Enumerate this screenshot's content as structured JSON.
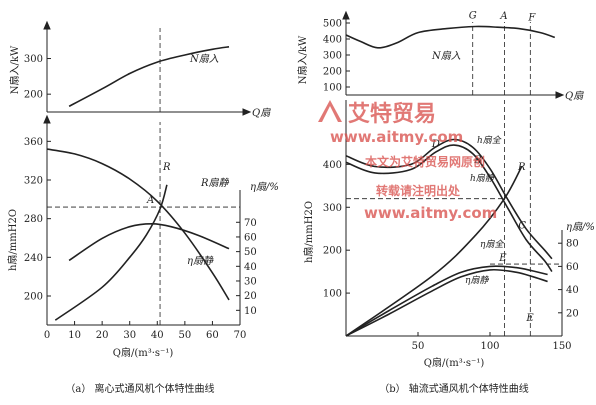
{
  "watermark": {
    "brand": "艾特贸易",
    "url": "www.aitmy.com",
    "line1": "本文为艾特贸易网原创",
    "line2": "转载请注明出处",
    "color": "#d9534f"
  },
  "chart_data": [
    {
      "type": "line",
      "panel_caption": "（a） 离心式通风机个体特性曲线",
      "top": {
        "ylabel": "N扇入/kW",
        "yticks": [
          "200",
          "300"
        ],
        "ylim": [
          150,
          380
        ],
        "xaxis_label": "Q扇",
        "series": [
          {
            "name": "N扇入",
            "x": [
              8,
              20,
              30,
              40,
              50,
              60,
              66
            ],
            "y": [
              166,
              215,
              258,
              290,
              310,
              326,
              333
            ]
          }
        ]
      },
      "bottom": {
        "xlabel": "Q扇/(m³·s⁻¹)",
        "xticks": [
          "0",
          "10",
          "20",
          "30",
          "40",
          "50",
          "60",
          "70"
        ],
        "xlim": [
          0,
          70
        ],
        "ylabel_left": "h扇/mmH2O",
        "yticks_left": [
          "200",
          "240",
          "280",
          "320",
          "360"
        ],
        "ylim_left": [
          170,
          380
        ],
        "ylabel_right": "η扇/%",
        "yticks_right": [
          "10",
          "20",
          "30",
          "40",
          "50",
          "60",
          "70"
        ],
        "ylim_right": [
          0,
          92
        ],
        "series": [
          {
            "name": "R扇静",
            "axis": "left",
            "x": [
              0,
              10,
              20,
              30,
              40,
              50,
              60,
              66
            ],
            "y": [
              352,
              347,
              337,
              321,
              298,
              265,
              224,
              196
            ]
          },
          {
            "name": "R",
            "axis": "left",
            "x": [
              3,
              20,
              30,
              36,
              41,
              43.5
            ],
            "y": [
              175,
              209,
              240,
              263,
              290,
              315
            ]
          },
          {
            "name": "η扇静",
            "axis": "right",
            "x": [
              8,
              20,
              30,
              38,
              45,
              55,
              66
            ],
            "y": [
              44,
              59,
              67,
              69,
              67,
              61,
              52
            ]
          }
        ],
        "points": [
          {
            "label": "A",
            "x": 41,
            "y": 292
          }
        ],
        "reference_lines": {
          "x": 41,
          "y": 292
        }
      }
    },
    {
      "type": "line",
      "panel_caption": "（b） 轴流式通风机个体特性曲线",
      "top": {
        "ylabel": "N扇入/kW",
        "yticks": [
          "100",
          "200",
          "300",
          "400",
          "500"
        ],
        "ylim": [
          50,
          550
        ],
        "xaxis_label": "Q扇",
        "series": [
          {
            "name": "N扇入",
            "x": [
              0,
              10,
              22,
              35,
              50,
              70,
              90,
              105,
              120,
              135,
              145
            ],
            "y": [
              425,
              385,
              345,
              375,
              440,
              465,
              478,
              474,
              465,
              440,
              410
            ]
          }
        ],
        "points": [
          {
            "label": "G",
            "x": 88,
            "y": 478
          },
          {
            "label": "A",
            "x": 110,
            "y": 474
          },
          {
            "label": "F",
            "x": 128,
            "y": 466
          }
        ]
      },
      "bottom": {
        "xlabel": "Q扇/(m³·s⁻¹)",
        "xticks": [
          "50",
          "100",
          "150"
        ],
        "xlim": [
          0,
          150
        ],
        "ylabel_left": "h扇/mmH2O",
        "yticks_left": [
          "100",
          "200",
          "300",
          "400"
        ],
        "ylim_left": [
          0,
          550
        ],
        "ylabel_right": "η扇/%",
        "yticks_right": [
          "20",
          "40",
          "60",
          "80"
        ],
        "ylim_right": [
          0,
          100
        ],
        "series": [
          {
            "name": "h扇全",
            "axis": "left",
            "x": [
              0,
              20,
              45,
              62,
              75,
              88,
              100,
              112,
              125,
              138,
              143
            ],
            "y": [
              420,
              395,
              400,
              440,
              458,
              440,
              390,
              320,
              250,
              200,
              180
            ]
          },
          {
            "name": "h扇静",
            "axis": "left",
            "x": [
              0,
              20,
              45,
              62,
              75,
              88,
              100,
              112,
              125,
              138,
              143
            ],
            "y": [
              405,
              380,
              388,
              428,
              445,
              425,
              370,
              300,
              225,
              175,
              150
            ]
          },
          {
            "name": "R",
            "axis": "left",
            "x": [
              0,
              60,
              90,
              110,
              122
            ],
            "y": [
              0,
              140,
              235,
              320,
              395
            ]
          },
          {
            "name": "η扇全",
            "axis": "right",
            "x": [
              0,
              30,
              60,
              80,
              100,
              118,
              130,
              140
            ],
            "y": [
              0,
              22,
              43,
              55,
              60,
              59,
              56,
              53
            ]
          },
          {
            "name": "η扇静",
            "axis": "right",
            "x": [
              0,
              30,
              60,
              80,
              100,
              118,
              130,
              140
            ],
            "y": [
              0,
              19,
              39,
              51,
              57,
              55,
              51,
              47
            ]
          }
        ],
        "points": [
          {
            "label": "D",
            "x": 68,
            "y": 450
          },
          {
            "label": "B",
            "x": 96,
            "y": 412
          },
          {
            "label": "C",
            "x": 128,
            "y": 260
          },
          {
            "label": "E",
            "x": 105,
            "y": 170
          },
          {
            "label": "E",
            "x": 128,
            "y": 40
          }
        ],
        "reference_lines": {
          "x": 110,
          "y": 320
        }
      }
    }
  ]
}
